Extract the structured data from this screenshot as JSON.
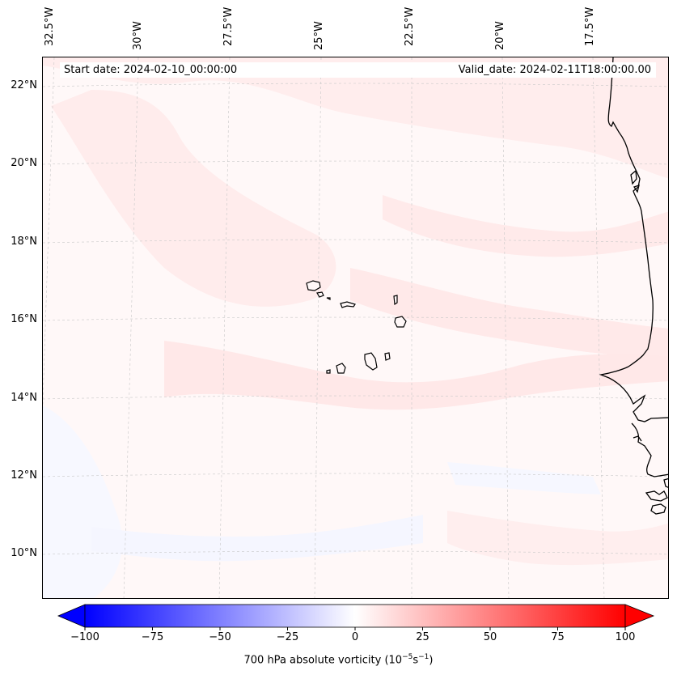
{
  "map": {
    "title_left": "Start date: 2024-02-10_00:00:00",
    "title_right": "Valid_date: 2024-02-11T18:00:00.00",
    "lon_labels": [
      "32.5°W",
      "30°W",
      "27.5°W",
      "25°W",
      "22.5°W",
      "20°W",
      "17.5°W"
    ],
    "lat_labels": [
      "22°N",
      "20°N",
      "18°N",
      "16°N",
      "14°N",
      "12°N",
      "10°N"
    ],
    "region": "Cabo Verde / West African coast",
    "field": "700 hPa absolute vorticity"
  },
  "colorbar": {
    "min": -100,
    "max": 100,
    "ticks": [
      "−100",
      "−75",
      "−50",
      "−25",
      "0",
      "25",
      "50",
      "75",
      "100"
    ],
    "label_main": "700 hPa absolute vorticity (10",
    "label_exp1": "−5",
    "label_mid": "s",
    "label_exp2": "−1",
    "label_end": ")",
    "cmap": "bwr",
    "color_low": "#0000ff",
    "color_mid": "#ffffff",
    "color_high": "#ff0000"
  }
}
